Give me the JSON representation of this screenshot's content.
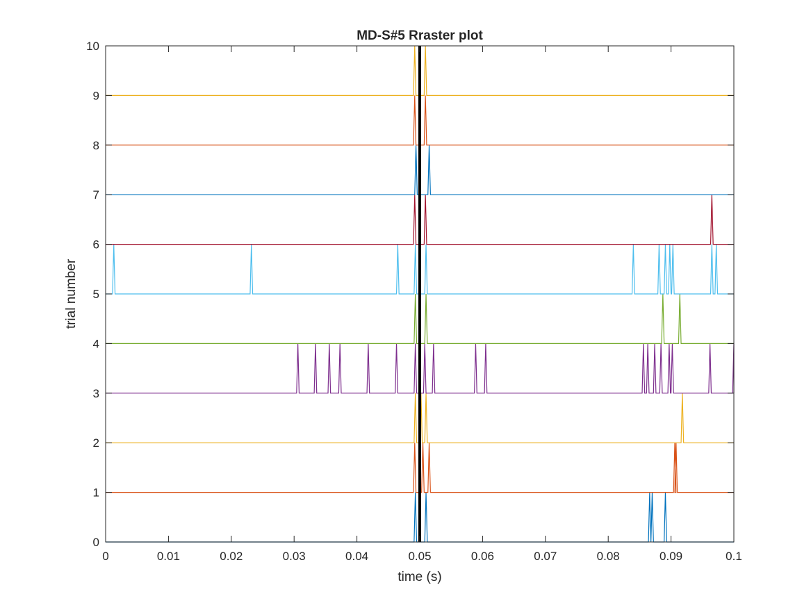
{
  "chart_data": {
    "type": "raster",
    "title": "MD-S#5 Rraster plot",
    "xlabel": "time (s)",
    "ylabel": "trial number",
    "xlim": [
      0,
      0.1
    ],
    "ylim": [
      0,
      10
    ],
    "x_ticks": [
      0,
      0.01,
      0.02,
      0.03,
      0.04,
      0.05,
      0.06,
      0.07,
      0.08,
      0.09,
      0.1
    ],
    "x_tick_labels": [
      "0",
      "0.01",
      "0.02",
      "0.03",
      "0.04",
      "0.05",
      "0.06",
      "0.07",
      "0.08",
      "0.09",
      "0.1"
    ],
    "y_ticks": [
      0,
      1,
      2,
      3,
      4,
      5,
      6,
      7,
      8,
      9,
      10
    ],
    "y_tick_labels": [
      "0",
      "1",
      "2",
      "3",
      "4",
      "5",
      "6",
      "7",
      "8",
      "9",
      "10"
    ],
    "grid": false,
    "stimulus_marker": {
      "x": 0.05,
      "color": "#000000"
    },
    "series": [
      {
        "trial": 1,
        "color": "#0072BD",
        "spikes": [
          0.0493,
          0.051,
          0.0866,
          0.087,
          0.0891
        ]
      },
      {
        "trial": 2,
        "color": "#D95319",
        "spikes": [
          0.0492,
          0.0505,
          0.0515,
          0.0906,
          0.0908
        ]
      },
      {
        "trial": 3,
        "color": "#EDB120",
        "spikes": [
          0.0493,
          0.0502,
          0.051,
          0.0918
        ]
      },
      {
        "trial": 4,
        "color": "#7E2F8E",
        "spikes": [
          0.0306,
          0.0334,
          0.0356,
          0.0373,
          0.0418,
          0.0463,
          0.0493,
          0.0508,
          0.0522,
          0.0589,
          0.0605,
          0.0856,
          0.0863,
          0.0874,
          0.0884,
          0.0897,
          0.0902,
          0.0962,
          0.1
        ]
      },
      {
        "trial": 5,
        "color": "#77AC30",
        "spikes": [
          0.0493,
          0.051,
          0.0887,
          0.0914
        ]
      },
      {
        "trial": 6,
        "color": "#4DBEEE",
        "spikes": [
          0.0013,
          0.0232,
          0.0465,
          0.0493,
          0.051,
          0.084,
          0.0881,
          0.0891,
          0.0898,
          0.0903,
          0.0965,
          0.0972
        ]
      },
      {
        "trial": 7,
        "color": "#A2142F",
        "spikes": [
          0.0492,
          0.0509,
          0.0965
        ]
      },
      {
        "trial": 8,
        "color": "#0072BD",
        "spikes": [
          0.0494,
          0.0515
        ]
      },
      {
        "trial": 9,
        "color": "#D95319",
        "spikes": [
          0.0492,
          0.0509
        ]
      },
      {
        "trial": 10,
        "color": "#EDB120",
        "spikes": [
          0.0492,
          0.0509
        ]
      }
    ]
  }
}
